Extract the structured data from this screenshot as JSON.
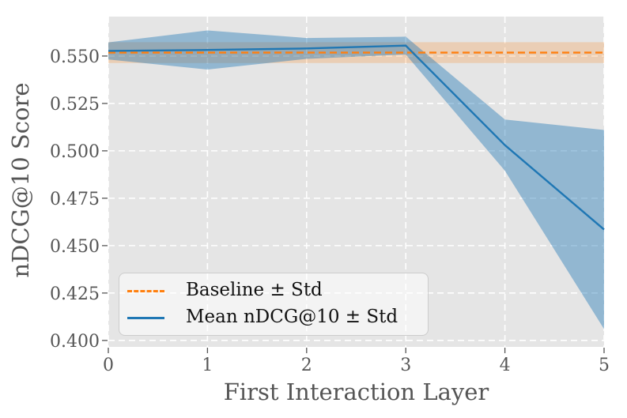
{
  "figure": {
    "background": "#ffffff",
    "plot_background": "#e5e5e5",
    "grid_color": "#ffffff",
    "tick_color": "#555555",
    "label_color": "#555555"
  },
  "chart_data": {
    "type": "line",
    "title": "",
    "xlabel": "First Interaction Layer",
    "ylabel": "nDCG@10 Score",
    "x": [
      0,
      1,
      2,
      3,
      4,
      5
    ],
    "xlim": [
      0,
      5
    ],
    "ylim": [
      0.3966,
      0.5708
    ],
    "xticks": [
      0,
      1,
      2,
      3,
      4,
      5
    ],
    "xtick_labels": [
      "0",
      "1",
      "2",
      "3",
      "4",
      "5"
    ],
    "yticks": [
      0.4,
      0.425,
      0.45,
      0.475,
      0.5,
      0.525,
      0.55
    ],
    "ytick_labels": [
      "0.400",
      "0.425",
      "0.450",
      "0.475",
      "0.500",
      "0.525",
      "0.550"
    ],
    "grid": {
      "visible": true,
      "style": "dashed",
      "color": "#ffffff"
    },
    "legend_position": "lower-left",
    "series": [
      {
        "name": "Baseline ± Std",
        "kind": "hline-band",
        "mean": 0.5518,
        "std": 0.0055,
        "color": "#ff7f0e",
        "band_opacity": 0.22,
        "line_style": "dashed"
      },
      {
        "name": "Mean nDCG@10 ± Std",
        "kind": "line-band",
        "mean": [
          0.5527,
          0.5532,
          0.554,
          0.5555,
          0.503,
          0.4585
        ],
        "std": [
          0.0045,
          0.0103,
          0.0055,
          0.0047,
          0.0135,
          0.0525
        ],
        "color": "#1f77b4",
        "band_opacity": 0.42,
        "line_style": "solid"
      }
    ]
  }
}
